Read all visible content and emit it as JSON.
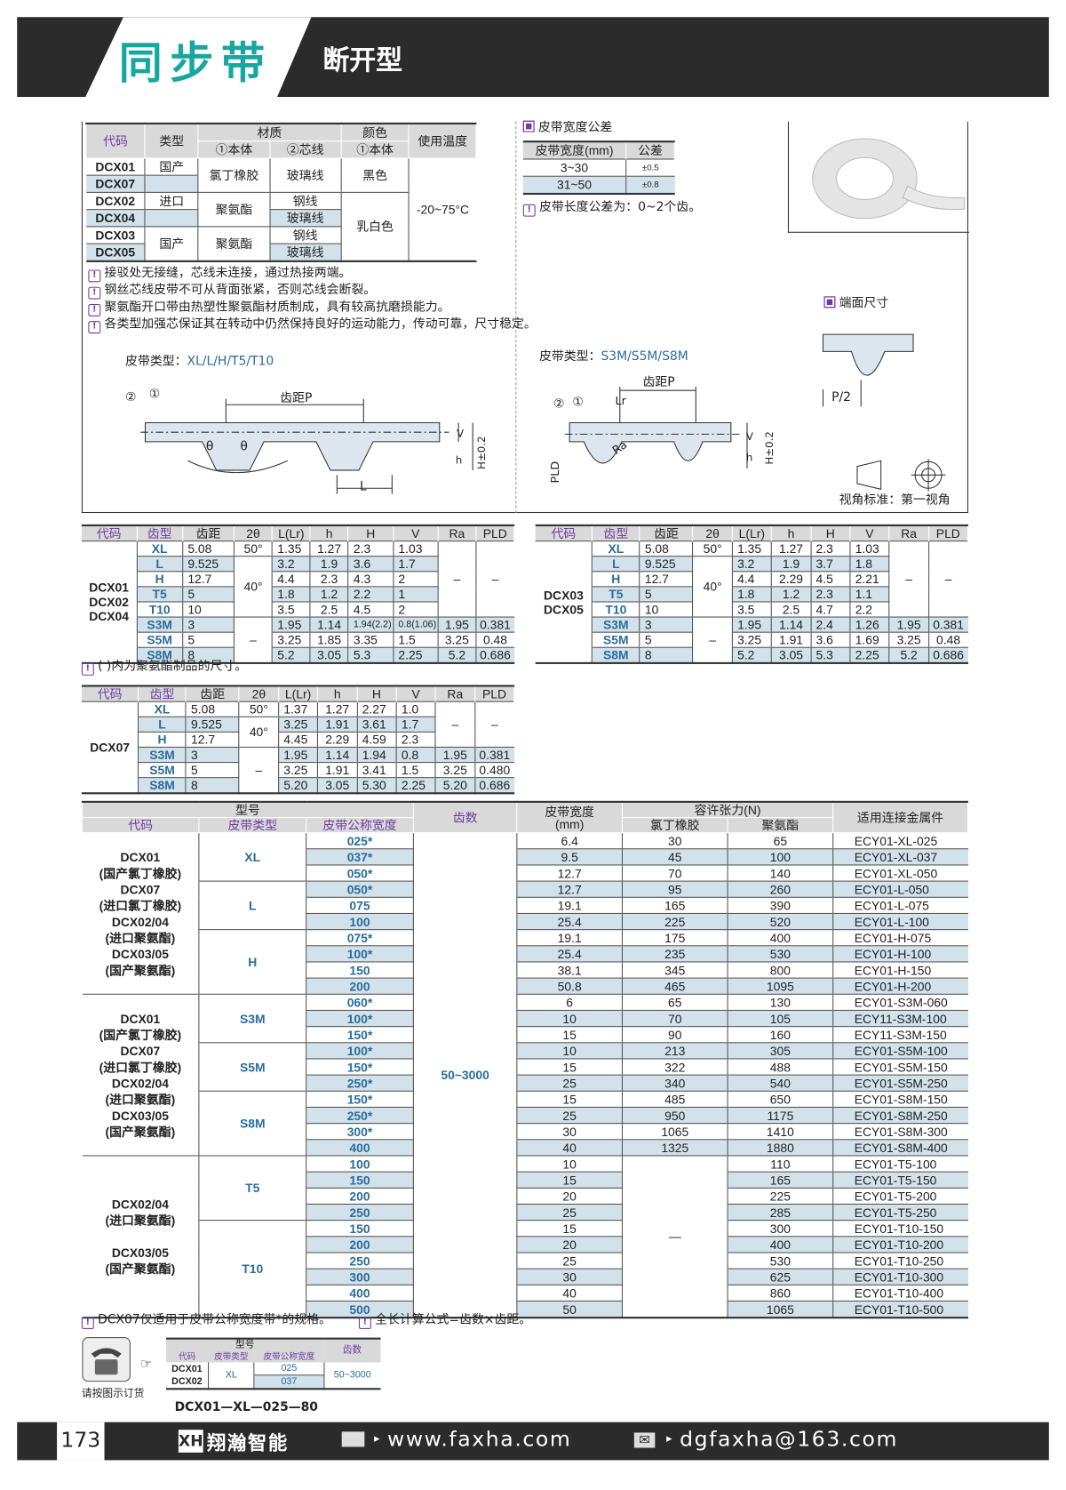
{
  "header": {
    "title": "同步带",
    "subtitle": "断开型"
  },
  "material_table": {
    "headers": {
      "code": "代码",
      "type": "类型",
      "material": "材质",
      "body": "①本体",
      "core": "②芯线",
      "color": "颜色",
      "color_body": "①本体",
      "temp": "使用温度"
    },
    "rows": [
      [
        "DCX01",
        "国产",
        "氯丁橡胶",
        "玻璃线",
        "黑色",
        "-20~75°C"
      ],
      [
        "DCX07",
        "",
        null,
        null,
        null,
        null
      ],
      [
        "DCX02",
        "进口",
        "聚氨酯",
        "钢线",
        "乳白色",
        null
      ],
      [
        "DCX04",
        "",
        null,
        "玻璃线",
        null,
        null
      ],
      [
        "DCX03",
        "国产",
        "聚氨酯",
        "钢线",
        null,
        null
      ],
      [
        "DCX05",
        null,
        null,
        "玻璃线",
        null,
        null
      ]
    ]
  },
  "width_tolerance": {
    "title": "皮带宽度公差",
    "headers": [
      "皮带宽度(mm)",
      "公差"
    ],
    "rows": [
      [
        "3~30",
        "±0.5"
      ],
      [
        "31~50",
        "±0.8"
      ]
    ],
    "length_note": "皮带长度公差为：0~2个齿。"
  },
  "notes": [
    "接驳处无接缝，芯线未连接，通过热接两端。",
    "钢丝芯线皮带不可从背面张紧，否则芯线会断裂。",
    "聚氨酯开口带由热塑性聚氨酯材质制成，具有较高抗磨损能力。",
    "各类型加强芯保证其在转动中仍然保持良好的运动能力，传动可靠，尺寸稳定。"
  ],
  "diagram_left": {
    "label": "皮带类型：",
    "types": "XL/L/H/T5/T10",
    "pitch": "齿距P",
    "mark1": "①",
    "mark2": "②",
    "theta": "θ",
    "L": "L",
    "h": "h",
    "H": "H±0.2",
    "V": "V"
  },
  "diagram_right": {
    "label": "皮带类型：",
    "types": "S3M/S5M/S8M",
    "pitch": "齿距P",
    "Lr": "Lr",
    "Ra": "Ra",
    "PLD": "PLD",
    "mark1": "①",
    "mark2": "②",
    "h": "h",
    "H": "H±0.2",
    "V": "V"
  },
  "end_size": {
    "title": "端面尺寸",
    "p2": "P/2"
  },
  "view_standard": "视角标准：第一视角",
  "spec_headers": [
    "代码",
    "齿型",
    "齿距",
    "2θ",
    "L(Lr)",
    "h",
    "H",
    "V",
    "Ra",
    "PLD"
  ],
  "spec_tables": [
    {
      "rows": [
        [
          "DCX01\nDCX02\nDCX04",
          "XL",
          "5.08",
          "50°",
          "1.35",
          "1.27",
          "2.3",
          "1.03",
          "–",
          "–"
        ],
        [
          null,
          "L",
          "9.525",
          "40°",
          "3.2",
          "1.9",
          "3.6",
          "1.7",
          null,
          null
        ],
        [
          null,
          "H",
          "12.7",
          null,
          "4.4",
          "2.3",
          "4.3",
          "2",
          null,
          null
        ],
        [
          null,
          "T5",
          "5",
          null,
          "1.8",
          "1.2",
          "2.2",
          "1",
          null,
          null
        ],
        [
          null,
          "T10",
          "10",
          null,
          "3.5",
          "2.5",
          "4.5",
          "2",
          null,
          null
        ],
        [
          null,
          "S3M",
          "3",
          "–",
          "1.95",
          "1.14",
          "1.94(2.2)",
          "0.8(1.06)",
          "1.95",
          "0.381"
        ],
        [
          null,
          "S5M",
          "5",
          null,
          "3.25",
          "1.85",
          "3.35",
          "1.5",
          "3.25",
          "0.48"
        ],
        [
          null,
          "S8M",
          "8",
          null,
          "5.2",
          "3.05",
          "5.3",
          "2.25",
          "5.2",
          "0.686"
        ]
      ]
    },
    {
      "rows": [
        [
          "DCX03\nDCX05",
          "XL",
          "5.08",
          "50°",
          "1.35",
          "1.27",
          "2.3",
          "1.03",
          "–",
          "–"
        ],
        [
          null,
          "L",
          "9.525",
          "40°",
          "3.2",
          "1.9",
          "3.7",
          "1.8",
          null,
          null
        ],
        [
          null,
          "H",
          "12.7",
          null,
          "4.4",
          "2.29",
          "4.5",
          "2.21",
          null,
          null
        ],
        [
          null,
          "T5",
          "5",
          null,
          "1.8",
          "1.2",
          "2.3",
          "1.1",
          null,
          null
        ],
        [
          null,
          "T10",
          "10",
          null,
          "3.5",
          "2.5",
          "4.7",
          "2.2",
          null,
          null
        ],
        [
          null,
          "S3M",
          "3",
          "–",
          "1.95",
          "1.14",
          "2.4",
          "1.26",
          "1.95",
          "0.381"
        ],
        [
          null,
          "S5M",
          "5",
          null,
          "3.25",
          "1.91",
          "3.6",
          "1.69",
          "3.25",
          "0.48"
        ],
        [
          null,
          "S8M",
          "8",
          null,
          "5.2",
          "3.05",
          "5.3",
          "2.25",
          "5.2",
          "0.686"
        ]
      ]
    },
    {
      "rows": [
        [
          "DCX07",
          "XL",
          "5.08",
          "50°",
          "1.37",
          "1.27",
          "2.27",
          "1.0",
          "–",
          "–"
        ],
        [
          null,
          "L",
          "9.525",
          "40°",
          "3.25",
          "1.91",
          "3.61",
          "1.7",
          null,
          null
        ],
        [
          null,
          "H",
          "12.7",
          null,
          "4.45",
          "2.29",
          "4.59",
          "2.3",
          null,
          null
        ],
        [
          null,
          "S3M",
          "3",
          "–",
          "1.95",
          "1.14",
          "1.94",
          "0.8",
          "1.95",
          "0.381"
        ],
        [
          null,
          "S5M",
          "5",
          null,
          "3.25",
          "1.91",
          "3.41",
          "1.5",
          "3.25",
          "0.480"
        ],
        [
          null,
          "S8M",
          "8",
          null,
          "5.20",
          "3.05",
          "5.30",
          "2.25",
          "5.20",
          "0.686"
        ]
      ]
    }
  ],
  "spec_note": "( )内为聚氨酯制品的尺寸。",
  "order_table": {
    "headers": {
      "model": "型号",
      "code": "代码",
      "belt_type": "皮带类型",
      "nominal_width": "皮带公称宽度",
      "teeth": "齿数",
      "width": "皮带宽度\n(mm)",
      "tension": "容许张力(N)",
      "cr": "氯丁橡胶",
      "pu": "聚氨酯",
      "fitting": "适用连接金属件"
    },
    "rows": [
      [
        "DCX01\n(国产氯丁橡胶)\nDCX07\n(进口氯丁橡胶)\nDCX02/04\n(进口聚氨酯)\nDCX03/05\n(国产聚氨酯)",
        "XL",
        "025*",
        "50~3000",
        "6.4",
        "30",
        "65",
        "ECY01-XL-025"
      ],
      [
        null,
        null,
        "037*",
        null,
        "9.5",
        "45",
        "100",
        "ECY01-XL-037"
      ],
      [
        null,
        null,
        "050*",
        null,
        "12.7",
        "70",
        "140",
        "ECY01-XL-050"
      ],
      [
        null,
        "L",
        "050*",
        null,
        "12.7",
        "95",
        "260",
        "ECY01-L-050"
      ],
      [
        null,
        null,
        "075",
        null,
        "19.1",
        "165",
        "390",
        "ECY01-L-075"
      ],
      [
        null,
        null,
        "100",
        null,
        "25.4",
        "225",
        "520",
        "ECY01-L-100"
      ],
      [
        null,
        "H",
        "075*",
        null,
        "19.1",
        "175",
        "400",
        "ECY01-H-075"
      ],
      [
        null,
        null,
        "100*",
        null,
        "25.4",
        "235",
        "530",
        "ECY01-H-100"
      ],
      [
        null,
        null,
        "150",
        null,
        "38.1",
        "345",
        "800",
        "ECY01-H-150"
      ],
      [
        null,
        null,
        "200",
        null,
        "50.8",
        "465",
        "1095",
        "ECY01-H-200"
      ],
      [
        "DCX01\n(国产氯丁橡胶)\nDCX07\n(进口氯丁橡胶)\nDCX02/04\n(进口聚氨酯)\nDCX03/05\n(国产聚氨酯)",
        "S3M",
        "060*",
        null,
        "6",
        "65",
        "130",
        "ECY01-S3M-060"
      ],
      [
        null,
        null,
        "100*",
        null,
        "10",
        "70",
        "105",
        "ECY11-S3M-100"
      ],
      [
        null,
        null,
        "150*",
        null,
        "15",
        "90",
        "160",
        "ECY11-S3M-150"
      ],
      [
        null,
        "S5M",
        "100*",
        null,
        "10",
        "213",
        "305",
        "ECY01-S5M-100"
      ],
      [
        null,
        null,
        "150*",
        null,
        "15",
        "322",
        "488",
        "ECY01-S5M-150"
      ],
      [
        null,
        null,
        "250*",
        null,
        "25",
        "340",
        "540",
        "ECY01-S5M-250"
      ],
      [
        null,
        "S8M",
        "150*",
        null,
        "15",
        "485",
        "650",
        "ECY01-S8M-150"
      ],
      [
        null,
        null,
        "250*",
        null,
        "25",
        "950",
        "1175",
        "ECY01-S8M-250"
      ],
      [
        null,
        null,
        "300*",
        null,
        "30",
        "1065",
        "1410",
        "ECY01-S8M-300"
      ],
      [
        null,
        null,
        "400",
        null,
        "40",
        "1325",
        "1880",
        "ECY01-S8M-400"
      ],
      [
        "DCX02/04\n(进口聚氨酯)\n\nDCX03/05\n(国产聚氨酯)",
        "T5",
        "100",
        null,
        "10",
        "—",
        "110",
        "ECY01-T5-100"
      ],
      [
        null,
        null,
        "150",
        null,
        "15",
        null,
        "165",
        "ECY01-T5-150"
      ],
      [
        null,
        null,
        "200",
        null,
        "20",
        null,
        "225",
        "ECY01-T5-200"
      ],
      [
        null,
        null,
        "250",
        null,
        "25",
        null,
        "285",
        "ECY01-T5-250"
      ],
      [
        null,
        "T10",
        "150",
        null,
        "15",
        null,
        "300",
        "ECY01-T10-150"
      ],
      [
        null,
        null,
        "200",
        null,
        "20",
        null,
        "400",
        "ECY01-T10-200"
      ],
      [
        null,
        null,
        "250",
        null,
        "25",
        null,
        "530",
        "ECY01-T10-250"
      ],
      [
        null,
        null,
        "300",
        null,
        "30",
        null,
        "625",
        "ECY01-T10-300"
      ],
      [
        null,
        null,
        "400",
        null,
        "40",
        null,
        "860",
        "ECY01-T10-400"
      ],
      [
        null,
        null,
        "500",
        null,
        "50",
        null,
        "1065",
        "ECY01-T10-500"
      ]
    ]
  },
  "order_notes": [
    "DCX07仅适用于皮带公称宽度带*的规格。",
    "全长计算公式=齿数×齿距。"
  ],
  "order_example": {
    "caption": "请按图示订货",
    "headers": {
      "model": "型号",
      "code": "代码",
      "belt_type": "皮带类型",
      "nominal_width": "皮带公称宽度",
      "teeth": "齿数"
    },
    "codes": "DCX01\nDCX02",
    "type": "XL",
    "widths": [
      "025",
      "037"
    ],
    "teeth": "50~3000",
    "example": "DCX01—XL—025—80"
  },
  "footer": {
    "page": "173",
    "brand": "翔瀚智能",
    "logo": "XH",
    "website": "www.faxha.com",
    "email": "dgfaxha@163.com"
  },
  "colors": {
    "accent": "#16a8a0",
    "purple": "#6b3fa0",
    "blue": "#2a6c9e",
    "stripe": "#d2e1ea",
    "dark": "#2b2b2b"
  }
}
